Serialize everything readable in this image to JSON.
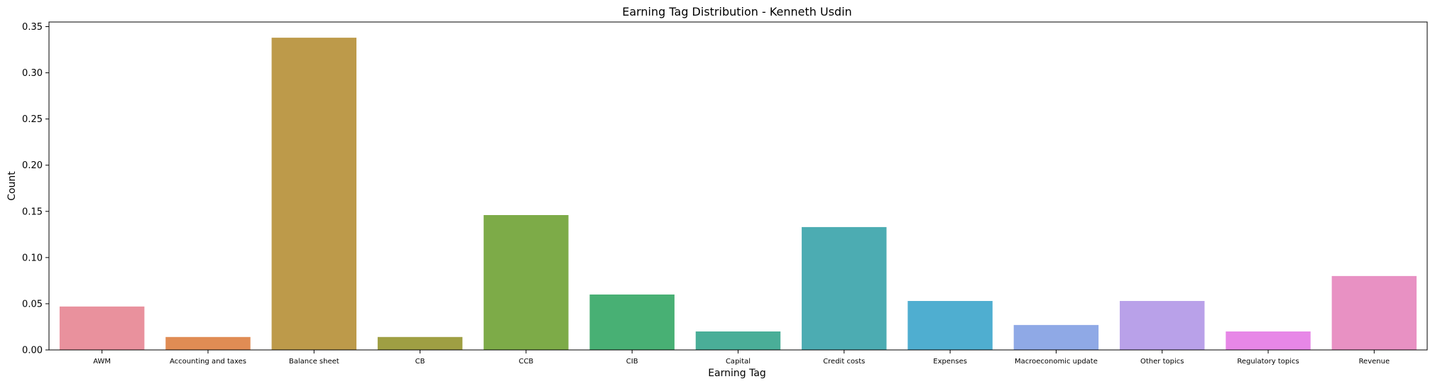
{
  "chart_data": {
    "type": "bar",
    "title": "Earning Tag Distribution - Kenneth Usdin",
    "xlabel": "Earning Tag",
    "ylabel": "Count",
    "ylim": [
      0,
      0.355
    ],
    "yticks": [
      0.0,
      0.05,
      0.1,
      0.15,
      0.2,
      0.25,
      0.3,
      0.35
    ],
    "ytick_labels": [
      "0.00",
      "0.05",
      "0.10",
      "0.15",
      "0.20",
      "0.25",
      "0.30",
      "0.35"
    ],
    "grid": false,
    "categories": [
      "AWM",
      "Accounting and taxes",
      "Balance sheet",
      "CB",
      "CCB",
      "CIB",
      "Capital",
      "Credit costs",
      "Expenses",
      "Macroeconomic update",
      "Other topics",
      "Regulatory topics",
      "Revenue"
    ],
    "values": [
      0.047,
      0.014,
      0.338,
      0.014,
      0.146,
      0.06,
      0.02,
      0.133,
      0.053,
      0.027,
      0.053,
      0.02,
      0.08
    ],
    "colors": [
      "#e9919d",
      "#e08c54",
      "#bd9a4a",
      "#9f9f43",
      "#7dab48",
      "#48b074",
      "#4aae98",
      "#4cacb2",
      "#4faed0",
      "#8fa9e6",
      "#b9a1e9",
      "#e787e7",
      "#e891c3"
    ]
  }
}
